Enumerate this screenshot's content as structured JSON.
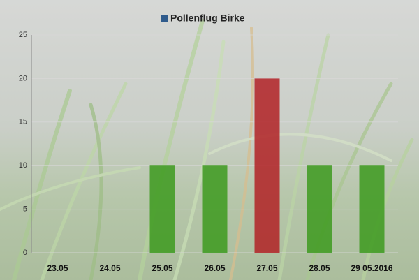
{
  "chart_data": {
    "type": "bar",
    "categories": [
      "23.05",
      "24.05",
      "25.05",
      "26.05",
      "27.05",
      "28.05",
      "29 05.2016"
    ],
    "series": [
      {
        "name": "Pollenflug Birke",
        "color": "#2f5b8c",
        "values": [
          0,
          0,
          10,
          10,
          20,
          10,
          10
        ]
      }
    ],
    "bar_colors": [
      "#3d9a1f",
      "#3d9a1f",
      "#3d9a1f",
      "#3d9a1f",
      "#b22226",
      "#3d9a1f",
      "#3d9a1f"
    ],
    "ylim": [
      0,
      25
    ],
    "yticks": [
      0,
      5,
      10,
      15,
      20,
      25
    ],
    "grid": true,
    "legend": "top"
  }
}
